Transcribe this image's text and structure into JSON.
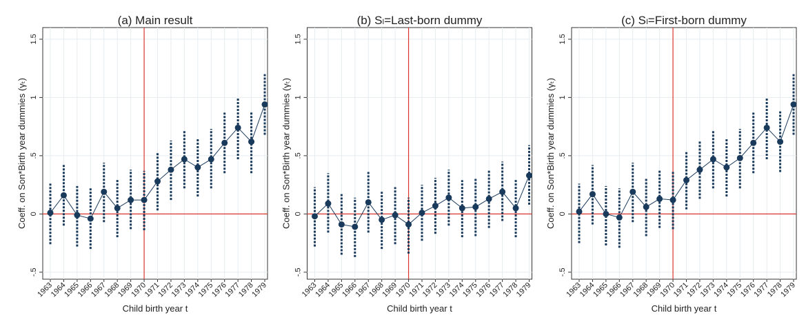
{
  "chart_data": [
    {
      "type": "errorbar",
      "title": "(a) Main result",
      "x_label": "Child birth year t",
      "y_label": "Coeff. on Son*Birth year dummies (γₜ)",
      "categories": [
        "1963",
        "1964",
        "1965",
        "1966",
        "1967",
        "1968",
        "1969",
        "1970",
        "1971",
        "1972",
        "1973",
        "1974",
        "1975",
        "1976",
        "1977",
        "1978",
        "1979"
      ],
      "series": [
        {
          "color": "#1a3a5c",
          "values": [
            0.01,
            0.16,
            -0.01,
            -0.04,
            0.19,
            0.05,
            0.12,
            0.12,
            0.28,
            0.38,
            0.47,
            0.4,
            0.47,
            0.61,
            0.74,
            0.62,
            0.94
          ],
          "lower": [
            -0.26,
            -0.1,
            -0.28,
            -0.3,
            -0.07,
            -0.2,
            -0.13,
            -0.14,
            0.03,
            0.12,
            0.22,
            0.15,
            0.22,
            0.35,
            0.47,
            0.35,
            0.68
          ],
          "upper": [
            0.26,
            0.42,
            0.24,
            0.22,
            0.44,
            0.3,
            0.38,
            0.37,
            0.53,
            0.63,
            0.72,
            0.65,
            0.73,
            0.87,
            1.0,
            0.88,
            1.2
          ]
        }
      ],
      "ylim": [
        -0.56,
        1.6
      ],
      "yticks": [
        {
          "value": -0.5,
          "label": "-.5"
        },
        0,
        {
          "value": 0.5,
          "label": ".5"
        },
        1,
        1.5
      ],
      "grid": true,
      "hline": 0,
      "vline_category": "1970",
      "ref_color": "#d9342b"
    },
    {
      "type": "errorbar",
      "title": "(b) Sₗ=Last-born dummy",
      "x_label": "Child birth year t",
      "y_label": "Coeff. on Son*Birth year dummies (γₜ)",
      "categories": [
        "1963",
        "1964",
        "1965",
        "1966",
        "1967",
        "1968",
        "1969",
        "1970",
        "1971",
        "1972",
        "1973",
        "1974",
        "1975",
        "1976",
        "1977",
        "1978",
        "1979"
      ],
      "series": [
        {
          "color": "#1a3a5c",
          "values": [
            -0.02,
            0.09,
            -0.09,
            -0.11,
            0.1,
            -0.05,
            -0.01,
            -0.09,
            0.01,
            0.07,
            0.14,
            0.05,
            0.06,
            0.13,
            0.19,
            0.05,
            0.33
          ],
          "lower": [
            -0.28,
            -0.16,
            -0.35,
            -0.37,
            -0.16,
            -0.3,
            -0.26,
            -0.34,
            -0.23,
            -0.17,
            -0.1,
            -0.2,
            -0.19,
            -0.12,
            -0.06,
            -0.2,
            0.08
          ],
          "upper": [
            0.23,
            0.35,
            0.17,
            0.14,
            0.36,
            0.19,
            0.23,
            0.14,
            0.25,
            0.31,
            0.38,
            0.29,
            0.31,
            0.38,
            0.45,
            0.3,
            0.59
          ]
        }
      ],
      "ylim": [
        -0.56,
        1.6
      ],
      "yticks": [
        {
          "value": -0.5,
          "label": "-.5"
        },
        0,
        {
          "value": 0.5,
          "label": ".5"
        },
        1,
        1.5
      ],
      "grid": true,
      "hline": 0,
      "vline_category": "1970",
      "ref_color": "#d9342b"
    },
    {
      "type": "errorbar",
      "title": "(c) Sₗ=First-born dummy",
      "x_label": "Child birth year t",
      "y_label": "Coeff. on Son*Birth year dummies (γₜ)",
      "categories": [
        "1963",
        "1964",
        "1965",
        "1966",
        "1967",
        "1968",
        "1969",
        "1970",
        "1971",
        "1972",
        "1973",
        "1974",
        "1975",
        "1976",
        "1977",
        "1978",
        "1979"
      ],
      "series": [
        {
          "color": "#1a3a5c",
          "values": [
            0.02,
            0.17,
            0.0,
            -0.03,
            0.19,
            0.06,
            0.13,
            0.12,
            0.29,
            0.38,
            0.47,
            0.4,
            0.48,
            0.61,
            0.74,
            0.62,
            0.94
          ],
          "lower": [
            -0.25,
            -0.09,
            -0.27,
            -0.29,
            -0.07,
            -0.19,
            -0.12,
            -0.13,
            0.04,
            0.13,
            0.22,
            0.15,
            0.22,
            0.35,
            0.47,
            0.36,
            0.68
          ],
          "upper": [
            0.26,
            0.42,
            0.24,
            0.22,
            0.44,
            0.31,
            0.38,
            0.37,
            0.53,
            0.63,
            0.72,
            0.65,
            0.73,
            0.87,
            1.0,
            0.88,
            1.2
          ]
        }
      ],
      "ylim": [
        -0.56,
        1.6
      ],
      "yticks": [
        {
          "value": -0.5,
          "label": "-.5"
        },
        0,
        {
          "value": 0.5,
          "label": ".5"
        },
        1,
        1.5
      ],
      "grid": true,
      "hline": 0,
      "vline_category": "1970",
      "ref_color": "#d9342b"
    }
  ]
}
